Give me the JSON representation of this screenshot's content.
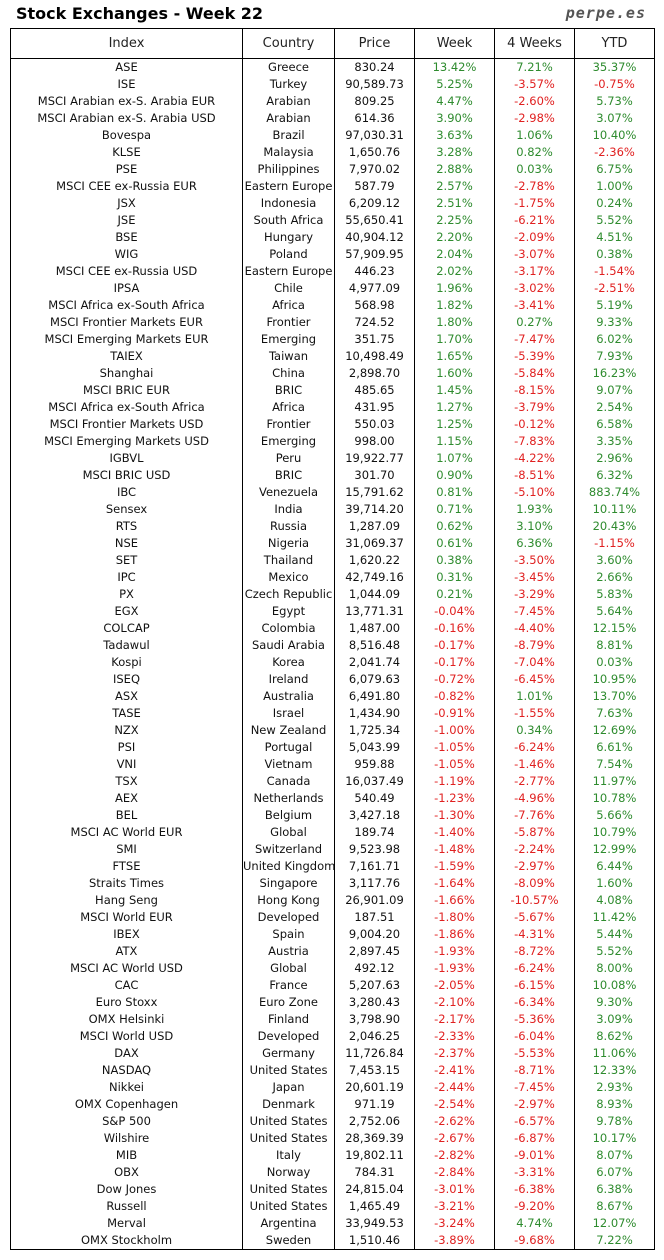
{
  "page": {
    "title": "Stock Exchanges - Week 22",
    "brand": "perpe.es"
  },
  "table": {
    "headers": [
      "Index",
      "Country",
      "Price",
      "Week",
      "4 Weeks",
      "YTD"
    ],
    "rows": [
      [
        "ASE",
        "Greece",
        "830.24",
        "13.42%",
        "7.21%",
        "35.37%"
      ],
      [
        "ISE",
        "Turkey",
        "90,589.73",
        "5.25%",
        "-3.57%",
        "-0.75%"
      ],
      [
        "MSCI Arabian ex-S. Arabia EUR",
        "Arabian",
        "809.25",
        "4.47%",
        "-2.60%",
        "5.73%"
      ],
      [
        "MSCI Arabian ex-S. Arabia USD",
        "Arabian",
        "614.36",
        "3.90%",
        "-2.98%",
        "3.07%"
      ],
      [
        "Bovespa",
        "Brazil",
        "97,030.31",
        "3.63%",
        "1.06%",
        "10.40%"
      ],
      [
        "KLSE",
        "Malaysia",
        "1,650.76",
        "3.28%",
        "0.82%",
        "-2.36%"
      ],
      [
        "PSE",
        "Philippines",
        "7,970.02",
        "2.88%",
        "0.03%",
        "6.75%"
      ],
      [
        "MSCI CEE ex-Russia EUR",
        "Eastern Europe",
        "587.79",
        "2.57%",
        "-2.78%",
        "1.00%"
      ],
      [
        "JSX",
        "Indonesia",
        "6,209.12",
        "2.51%",
        "-1.75%",
        "0.24%"
      ],
      [
        "JSE",
        "South Africa",
        "55,650.41",
        "2.25%",
        "-6.21%",
        "5.52%"
      ],
      [
        "BSE",
        "Hungary",
        "40,904.12",
        "2.20%",
        "-2.09%",
        "4.51%"
      ],
      [
        "WIG",
        "Poland",
        "57,909.95",
        "2.04%",
        "-3.07%",
        "0.38%"
      ],
      [
        "MSCI CEE ex-Russia USD",
        "Eastern Europe",
        "446.23",
        "2.02%",
        "-3.17%",
        "-1.54%"
      ],
      [
        "IPSA",
        "Chile",
        "4,977.09",
        "1.96%",
        "-3.02%",
        "-2.51%"
      ],
      [
        "MSCI Africa ex-South Africa",
        "Africa",
        "568.98",
        "1.82%",
        "-3.41%",
        "5.19%"
      ],
      [
        "MSCI Frontier Markets EUR",
        "Frontier",
        "724.52",
        "1.80%",
        "0.27%",
        "9.33%"
      ],
      [
        "MSCI Emerging Markets EUR",
        "Emerging",
        "351.75",
        "1.70%",
        "-7.47%",
        "6.02%"
      ],
      [
        "TAIEX",
        "Taiwan",
        "10,498.49",
        "1.65%",
        "-5.39%",
        "7.93%"
      ],
      [
        "Shanghai",
        "China",
        "2,898.70",
        "1.60%",
        "-5.84%",
        "16.23%"
      ],
      [
        "MSCI BRIC EUR",
        "BRIC",
        "485.65",
        "1.45%",
        "-8.15%",
        "9.07%"
      ],
      [
        "MSCI Africa ex-South Africa",
        "Africa",
        "431.95",
        "1.27%",
        "-3.79%",
        "2.54%"
      ],
      [
        "MSCI Frontier Markets USD",
        "Frontier",
        "550.03",
        "1.25%",
        "-0.12%",
        "6.58%"
      ],
      [
        "MSCI Emerging Markets USD",
        "Emerging",
        "998.00",
        "1.15%",
        "-7.83%",
        "3.35%"
      ],
      [
        "IGBVL",
        "Peru",
        "19,922.77",
        "1.07%",
        "-4.22%",
        "2.96%"
      ],
      [
        "MSCI BRIC USD",
        "BRIC",
        "301.70",
        "0.90%",
        "-8.51%",
        "6.32%"
      ],
      [
        "IBC",
        "Venezuela",
        "15,791.62",
        "0.81%",
        "-5.10%",
        "883.74%"
      ],
      [
        "Sensex",
        "India",
        "39,714.20",
        "0.71%",
        "1.93%",
        "10.11%"
      ],
      [
        "RTS",
        "Russia",
        "1,287.09",
        "0.62%",
        "3.10%",
        "20.43%"
      ],
      [
        "NSE",
        "Nigeria",
        "31,069.37",
        "0.61%",
        "6.36%",
        "-1.15%"
      ],
      [
        "SET",
        "Thailand",
        "1,620.22",
        "0.38%",
        "-3.50%",
        "3.60%"
      ],
      [
        "IPC",
        "Mexico",
        "42,749.16",
        "0.31%",
        "-3.45%",
        "2.66%"
      ],
      [
        "PX",
        "Czech Republic",
        "1,044.09",
        "0.21%",
        "-3.29%",
        "5.83%"
      ],
      [
        "EGX",
        "Egypt",
        "13,771.31",
        "-0.04%",
        "-7.45%",
        "5.64%"
      ],
      [
        "COLCAP",
        "Colombia",
        "1,487.00",
        "-0.16%",
        "-4.40%",
        "12.15%"
      ],
      [
        "Tadawul",
        "Saudi Arabia",
        "8,516.48",
        "-0.17%",
        "-8.79%",
        "8.81%"
      ],
      [
        "Kospi",
        "Korea",
        "2,041.74",
        "-0.17%",
        "-7.04%",
        "0.03%"
      ],
      [
        "ISEQ",
        "Ireland",
        "6,079.63",
        "-0.72%",
        "-6.45%",
        "10.95%"
      ],
      [
        "ASX",
        "Australia",
        "6,491.80",
        "-0.82%",
        "1.01%",
        "13.70%"
      ],
      [
        "TASE",
        "Israel",
        "1,434.90",
        "-0.91%",
        "-1.55%",
        "7.63%"
      ],
      [
        "NZX",
        "New Zealand",
        "1,725.34",
        "-1.00%",
        "0.34%",
        "12.69%"
      ],
      [
        "PSI",
        "Portugal",
        "5,043.99",
        "-1.05%",
        "-6.24%",
        "6.61%"
      ],
      [
        "VNI",
        "Vietnam",
        "959.88",
        "-1.05%",
        "-1.46%",
        "7.54%"
      ],
      [
        "TSX",
        "Canada",
        "16,037.49",
        "-1.19%",
        "-2.77%",
        "11.97%"
      ],
      [
        "AEX",
        "Netherlands",
        "540.49",
        "-1.23%",
        "-4.96%",
        "10.78%"
      ],
      [
        "BEL",
        "Belgium",
        "3,427.18",
        "-1.30%",
        "-7.76%",
        "5.66%"
      ],
      [
        "MSCI AC World EUR",
        "Global",
        "189.74",
        "-1.40%",
        "-5.87%",
        "10.79%"
      ],
      [
        "SMI",
        "Switzerland",
        "9,523.98",
        "-1.48%",
        "-2.24%",
        "12.99%"
      ],
      [
        "FTSE",
        "United Kingdom",
        "7,161.71",
        "-1.59%",
        "-2.97%",
        "6.44%"
      ],
      [
        "Straits Times",
        "Singapore",
        "3,117.76",
        "-1.64%",
        "-8.09%",
        "1.60%"
      ],
      [
        "Hang Seng",
        "Hong Kong",
        "26,901.09",
        "-1.66%",
        "-10.57%",
        "4.08%"
      ],
      [
        "MSCI World EUR",
        "Developed",
        "187.51",
        "-1.80%",
        "-5.67%",
        "11.42%"
      ],
      [
        "IBEX",
        "Spain",
        "9,004.20",
        "-1.86%",
        "-4.31%",
        "5.44%"
      ],
      [
        "ATX",
        "Austria",
        "2,897.45",
        "-1.93%",
        "-8.72%",
        "5.52%"
      ],
      [
        "MSCI AC World USD",
        "Global",
        "492.12",
        "-1.93%",
        "-6.24%",
        "8.00%"
      ],
      [
        "CAC",
        "France",
        "5,207.63",
        "-2.05%",
        "-6.15%",
        "10.08%"
      ],
      [
        "Euro Stoxx",
        "Euro Zone",
        "3,280.43",
        "-2.10%",
        "-6.34%",
        "9.30%"
      ],
      [
        "OMX Helsinki",
        "Finland",
        "3,798.90",
        "-2.17%",
        "-5.36%",
        "3.09%"
      ],
      [
        "MSCI World USD",
        "Developed",
        "2,046.25",
        "-2.33%",
        "-6.04%",
        "8.62%"
      ],
      [
        "DAX",
        "Germany",
        "11,726.84",
        "-2.37%",
        "-5.53%",
        "11.06%"
      ],
      [
        "NASDAQ",
        "United States",
        "7,453.15",
        "-2.41%",
        "-8.71%",
        "12.33%"
      ],
      [
        "Nikkei",
        "Japan",
        "20,601.19",
        "-2.44%",
        "-7.45%",
        "2.93%"
      ],
      [
        "OMX Copenhagen",
        "Denmark",
        "971.19",
        "-2.54%",
        "-2.97%",
        "8.93%"
      ],
      [
        "S&P 500",
        "United States",
        "2,752.06",
        "-2.62%",
        "-6.57%",
        "9.78%"
      ],
      [
        "Wilshire",
        "United States",
        "28,369.39",
        "-2.67%",
        "-6.87%",
        "10.17%"
      ],
      [
        "MIB",
        "Italy",
        "19,802.11",
        "-2.82%",
        "-9.01%",
        "8.07%"
      ],
      [
        "OBX",
        "Norway",
        "784.31",
        "-2.84%",
        "-3.31%",
        "6.07%"
      ],
      [
        "Dow Jones",
        "United States",
        "24,815.04",
        "-3.01%",
        "-6.38%",
        "6.38%"
      ],
      [
        "Russell",
        "United States",
        "1,465.49",
        "-3.21%",
        "-9.20%",
        "8.67%"
      ],
      [
        "Merval",
        "Argentina",
        "33,949.53",
        "-3.24%",
        "4.74%",
        "12.07%"
      ],
      [
        "OMX Stockholm",
        "Sweden",
        "1,510.46",
        "-3.89%",
        "-9.68%",
        "7.22%"
      ]
    ]
  }
}
